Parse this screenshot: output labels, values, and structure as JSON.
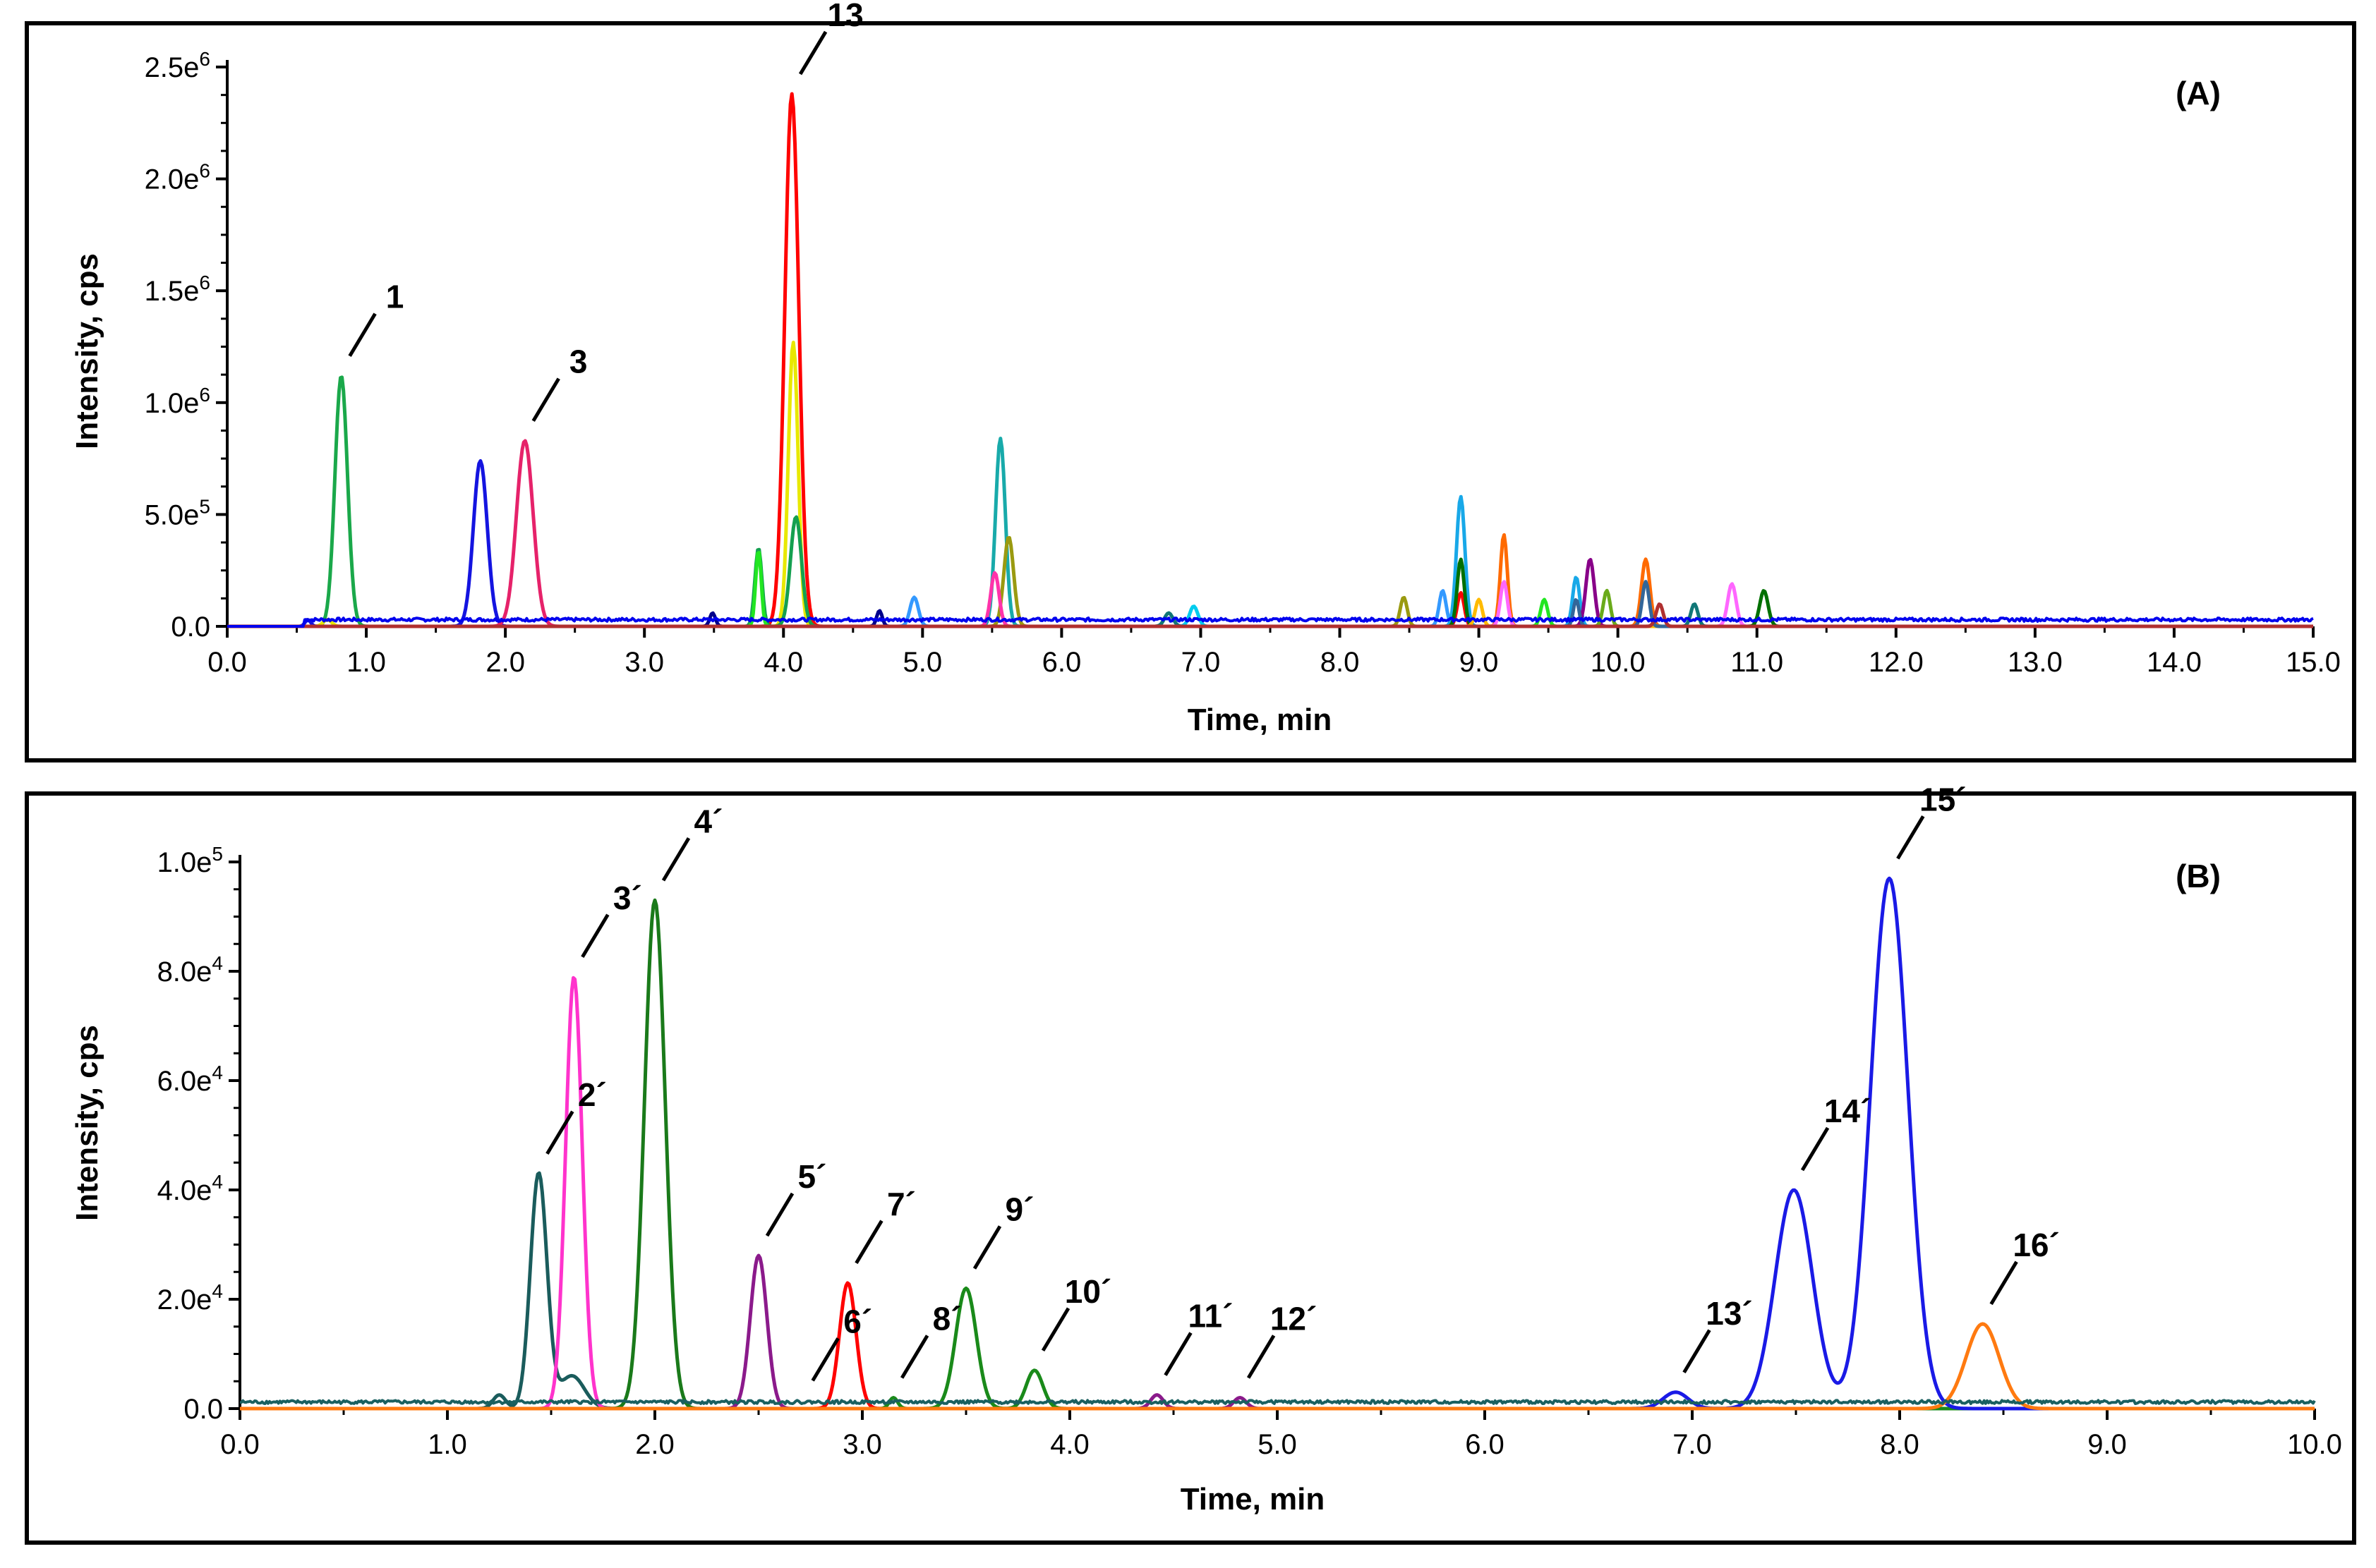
{
  "chart_data": [
    {
      "type": "line",
      "panel_label": "(A)",
      "xlabel": "Time, min",
      "ylabel": "Intensity, cps",
      "xlim": [
        0,
        15
      ],
      "ylim": [
        0,
        2500000
      ],
      "x_ticks": [
        "0.0",
        "1.0",
        "2.0",
        "3.0",
        "4.0",
        "5.0",
        "6.0",
        "7.0",
        "8.0",
        "9.0",
        "10.0",
        "11.0",
        "12.0",
        "13.0",
        "14.0",
        "15.0"
      ],
      "y_ticks": [
        {
          "value": 0,
          "mant": "0.0",
          "exp": ""
        },
        {
          "value": 500000,
          "mant": "5.0e",
          "exp": "5"
        },
        {
          "value": 1000000,
          "mant": "1.0e",
          "exp": "6"
        },
        {
          "value": 1500000,
          "mant": "1.5e",
          "exp": "6"
        },
        {
          "value": 2000000,
          "mant": "2.0e",
          "exp": "6"
        },
        {
          "value": 2500000,
          "mant": "2.5e",
          "exp": "6"
        }
      ],
      "baseline": {
        "color": "#0000ee",
        "level": 30000,
        "start": 0.55
      },
      "series": [
        {
          "color": "#1aa84a",
          "peaks": [
            [
              0.82,
              1120000,
              0.045
            ]
          ]
        },
        {
          "color": "#e8e800",
          "peaks": [
            [
              0.72,
              30000,
              0.03
            ],
            [
              4.07,
              1270000,
              0.035
            ]
          ]
        },
        {
          "color": "#1414e0",
          "peaks": [
            [
              1.82,
              740000,
              0.05
            ],
            [
              0.58,
              30000,
              0.02
            ]
          ]
        },
        {
          "color": "#e6226a",
          "peaks": [
            [
              2.14,
              830000,
              0.06
            ]
          ]
        },
        {
          "color": "#ff0000",
          "peaks": [
            [
              4.06,
              2380000,
              0.05
            ],
            [
              8.87,
              150000,
              0.025
            ]
          ]
        },
        {
          "color": "#14a050",
          "peaks": [
            [
              4.09,
              490000,
              0.04
            ],
            [
              3.82,
              350000,
              0.025
            ]
          ]
        },
        {
          "color": "#22e622",
          "peaks": [
            [
              3.82,
              340000,
              0.02
            ],
            [
              9.47,
              120000,
              0.025
            ]
          ]
        },
        {
          "color": "#18aaaa",
          "peaks": [
            [
              5.56,
              840000,
              0.035
            ]
          ]
        },
        {
          "color": "#9a9a10",
          "peaks": [
            [
              5.62,
              400000,
              0.035
            ],
            [
              8.46,
              130000,
              0.025
            ]
          ]
        },
        {
          "color": "#ff33aa",
          "peaks": [
            [
              5.52,
              240000,
              0.03
            ]
          ]
        },
        {
          "color": "#00008b",
          "peaks": [
            [
              3.49,
              60000,
              0.02
            ],
            [
              4.69,
              70000,
              0.02
            ]
          ]
        },
        {
          "color": "#3399ff",
          "peaks": [
            [
              4.94,
              130000,
              0.03
            ],
            [
              8.74,
              160000,
              0.025
            ]
          ]
        },
        {
          "color": "#00ccee",
          "peaks": [
            [
              6.95,
              90000,
              0.03
            ]
          ]
        },
        {
          "color": "#117777",
          "peaks": [
            [
              6.77,
              60000,
              0.03
            ],
            [
              10.55,
              100000,
              0.025
            ]
          ]
        },
        {
          "color": "#18a8e8",
          "peaks": [
            [
              8.87,
              580000,
              0.03
            ],
            [
              9.7,
              220000,
              0.025
            ]
          ]
        },
        {
          "color": "#007000",
          "peaks": [
            [
              8.87,
              300000,
              0.025
            ],
            [
              11.05,
              160000,
              0.03
            ]
          ]
        },
        {
          "color": "#ff6a00",
          "peaks": [
            [
              9.18,
              410000,
              0.025
            ],
            [
              10.2,
              300000,
              0.03
            ]
          ]
        },
        {
          "color": "#ff66ff",
          "peaks": [
            [
              9.18,
              200000,
              0.025
            ],
            [
              10.82,
              190000,
              0.03
            ]
          ]
        },
        {
          "color": "#880088",
          "peaks": [
            [
              9.8,
              300000,
              0.03
            ]
          ]
        },
        {
          "color": "#6aaa1a",
          "peaks": [
            [
              9.92,
              160000,
              0.025
            ]
          ]
        },
        {
          "color": "#ffbb00",
          "peaks": [
            [
              9.0,
              120000,
              0.025
            ]
          ]
        },
        {
          "color": "#336699",
          "peaks": [
            [
              10.2,
              200000,
              0.025
            ],
            [
              9.7,
              120000,
              0.02
            ]
          ]
        },
        {
          "color": "#b03030",
          "peaks": [
            [
              10.3,
              100000,
              0.025
            ]
          ]
        }
      ],
      "annotations": [
        {
          "label": "1",
          "x": 0.82,
          "y": 1120000
        },
        {
          "label": "3",
          "x": 2.14,
          "y": 830000
        },
        {
          "label": "13",
          "x": 4.06,
          "y": 2380000
        }
      ]
    },
    {
      "type": "line",
      "panel_label": "(B)",
      "xlabel": "Time, min",
      "ylabel": "Intensity, cps",
      "xlim": [
        0,
        10
      ],
      "ylim": [
        0,
        100000
      ],
      "x_ticks": [
        "0.0",
        "1.0",
        "2.0",
        "3.0",
        "4.0",
        "5.0",
        "6.0",
        "7.0",
        "8.0",
        "9.0",
        "10.0"
      ],
      "y_ticks": [
        {
          "value": 0,
          "mant": "0.0",
          "exp": ""
        },
        {
          "value": 20000,
          "mant": "2.0e",
          "exp": "4"
        },
        {
          "value": 40000,
          "mant": "4.0e",
          "exp": "4"
        },
        {
          "value": 60000,
          "mant": "6.0e",
          "exp": "4"
        },
        {
          "value": 80000,
          "mant": "8.0e",
          "exp": "4"
        },
        {
          "value": 100000,
          "mant": "1.0e",
          "exp": "5"
        }
      ],
      "baseline": {
        "color": "#1a6060",
        "level": 1200,
        "start": 0.0
      },
      "series": [
        {
          "color": "#1a5c5c",
          "peaks": [
            [
              1.44,
              43000,
              0.04
            ],
            [
              1.25,
              2500,
              0.03
            ],
            [
              1.6,
              6000,
              0.06
            ]
          ]
        },
        {
          "color": "#ff33cc",
          "peaks": [
            [
              1.61,
              79000,
              0.04
            ]
          ]
        },
        {
          "color": "#1a7a1a",
          "peaks": [
            [
              2.0,
              93000,
              0.05
            ]
          ]
        },
        {
          "color": "#8b1a8b",
          "peaks": [
            [
              2.5,
              28000,
              0.04
            ],
            [
              4.42,
              2500,
              0.03
            ],
            [
              4.82,
              2000,
              0.03
            ]
          ]
        },
        {
          "color": "#ff0000",
          "peaks": [
            [
              2.93,
              23000,
              0.04
            ]
          ]
        },
        {
          "color": "#1a8a1a",
          "peaks": [
            [
              3.5,
              22000,
              0.05
            ],
            [
              3.83,
              7000,
              0.04
            ],
            [
              3.15,
              2000,
              0.02
            ]
          ]
        },
        {
          "color": "#1a1ae6",
          "peaks": [
            [
              7.49,
              40000,
              0.09
            ],
            [
              7.95,
              97000,
              0.09
            ],
            [
              6.92,
              3000,
              0.06
            ]
          ]
        },
        {
          "color": "#ff7a10",
          "peaks": [
            [
              8.4,
              15500,
              0.08
            ]
          ]
        }
      ],
      "annotations": [
        {
          "label": "2´",
          "x": 1.44,
          "y": 43000
        },
        {
          "label": "3´",
          "x": 1.61,
          "y": 79000
        },
        {
          "label": "4´",
          "x": 2.0,
          "y": 93000
        },
        {
          "label": "5´",
          "x": 2.5,
          "y": 28000
        },
        {
          "label": "6´",
          "x": 2.72,
          "y": 1500
        },
        {
          "label": "7´",
          "x": 2.93,
          "y": 23000
        },
        {
          "label": "8´",
          "x": 3.15,
          "y": 2000
        },
        {
          "label": "9´",
          "x": 3.5,
          "y": 22000
        },
        {
          "label": "10´",
          "x": 3.83,
          "y": 7000
        },
        {
          "label": "11´",
          "x": 4.42,
          "y": 2500
        },
        {
          "label": "12´",
          "x": 4.82,
          "y": 2000
        },
        {
          "label": "13´",
          "x": 6.92,
          "y": 3000
        },
        {
          "label": "14´",
          "x": 7.49,
          "y": 40000
        },
        {
          "label": "15´",
          "x": 7.95,
          "y": 97000
        },
        {
          "label": "16´",
          "x": 8.4,
          "y": 15500
        }
      ]
    }
  ]
}
